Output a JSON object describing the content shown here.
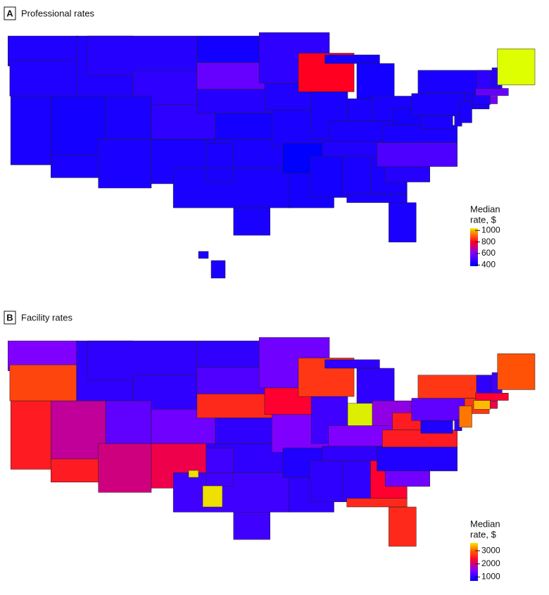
{
  "chart_data": [
    {
      "type": "choropleth",
      "panel_label": "A",
      "title": "Professional rates",
      "colorbar_title": [
        "Median",
        "rate, $"
      ],
      "clim": [
        380,
        1040
      ],
      "cticks": [
        400,
        600,
        800,
        1000
      ],
      "colorscale": [
        [
          400,
          "#0000ff"
        ],
        [
          600,
          "#8000ff"
        ],
        [
          800,
          "#ff0020"
        ],
        [
          1000,
          "#ffb000"
        ],
        [
          1100,
          "#ddff00"
        ]
      ],
      "values": [
        450,
        450,
        440,
        430,
        450,
        460,
        470,
        440,
        440,
        470,
        440,
        430,
        560,
        460,
        430,
        440,
        440,
        470,
        450,
        440,
        380,
        430,
        800,
        440,
        430,
        440,
        440,
        440,
        450,
        430,
        440,
        440,
        440,
        460,
        520,
        440,
        430,
        440,
        440,
        440,
        440,
        440,
        450,
        580,
        560,
        470,
        460,
        1100,
        440
      ]
    },
    {
      "type": "choropleth",
      "panel_label": "B",
      "title": "Facility rates",
      "colorbar_title": [
        "Median",
        "rate, $"
      ],
      "clim": [
        700,
        3600
      ],
      "cticks": [
        1000,
        2000,
        3000
      ],
      "colorscale": [
        [
          700,
          "#0000ff"
        ],
        [
          1500,
          "#8000ff"
        ],
        [
          2300,
          "#ff0030"
        ],
        [
          3000,
          "#ff6000"
        ],
        [
          3500,
          "#ffd000"
        ],
        [
          3800,
          "#ccff00"
        ]
      ],
      "values": [
        1500,
        2800,
        2500,
        1900,
        1000,
        1000,
        1000,
        1300,
        2000,
        1400,
        2200,
        1000,
        1200,
        2600,
        1000,
        1000,
        1100,
        1400,
        2300,
        1500,
        900,
        1000,
        2700,
        1100,
        1000,
        3700,
        1600,
        1500,
        1000,
        1000,
        1000,
        2300,
        2600,
        1400,
        900,
        2500,
        2500,
        1300,
        2700,
        900,
        1000,
        3100,
        3400,
        2200,
        2300,
        1000,
        1100,
        2900,
        3600
      ]
    }
  ]
}
